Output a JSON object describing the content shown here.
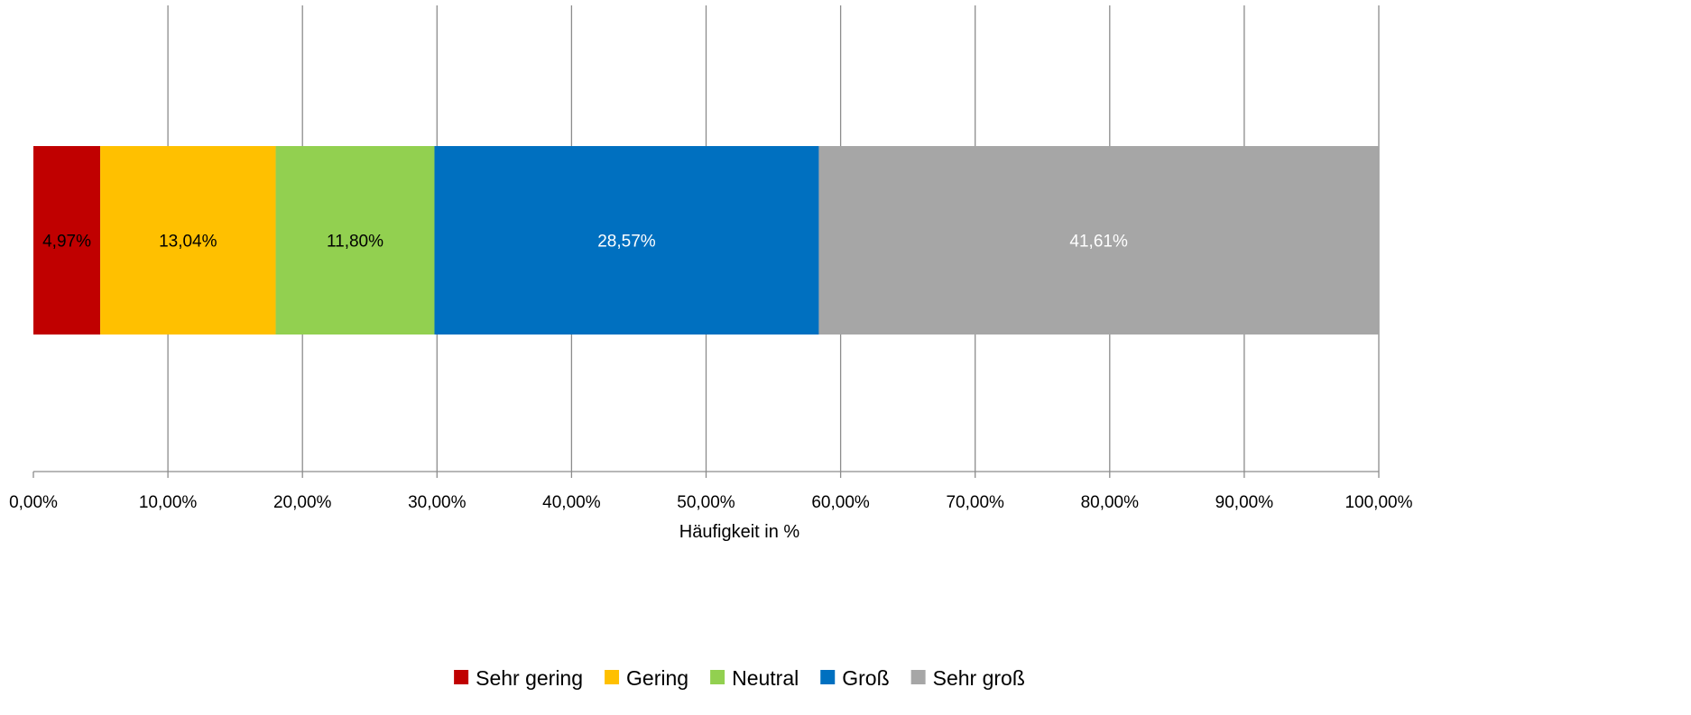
{
  "chart_data": {
    "type": "bar",
    "orientation": "horizontal",
    "stacked": true,
    "categories": [
      ""
    ],
    "series": [
      {
        "name": "Sehr gering",
        "values": [
          4.97
        ],
        "label": "4,97%",
        "color": "#c00000",
        "label_color": "#000000"
      },
      {
        "name": "Gering",
        "values": [
          13.04
        ],
        "label": "13,04%",
        "color": "#ffc000",
        "label_color": "#000000"
      },
      {
        "name": "Neutral",
        "values": [
          11.8
        ],
        "label": "11,80%",
        "color": "#92d050",
        "label_color": "#000000"
      },
      {
        "name": "Groß",
        "values": [
          28.57
        ],
        "label": "28,57%",
        "color": "#0070c0",
        "label_color": "#ffffff"
      },
      {
        "name": "Sehr groß",
        "values": [
          41.61
        ],
        "label": "41,61%",
        "color": "#a6a6a6",
        "label_color": "#ffffff"
      }
    ],
    "xlabel": "Häufigkeit in %",
    "ylabel": "",
    "xlim": [
      0,
      100
    ],
    "xticks": [
      0,
      10,
      20,
      30,
      40,
      50,
      60,
      70,
      80,
      90,
      100
    ],
    "xtick_labels": [
      "0,00%",
      "10,00%",
      "20,00%",
      "30,00%",
      "40,00%",
      "50,00%",
      "60,00%",
      "70,00%",
      "80,00%",
      "90,00%",
      "100,00%"
    ],
    "grid": "vertical",
    "legend": "bottom-center"
  }
}
